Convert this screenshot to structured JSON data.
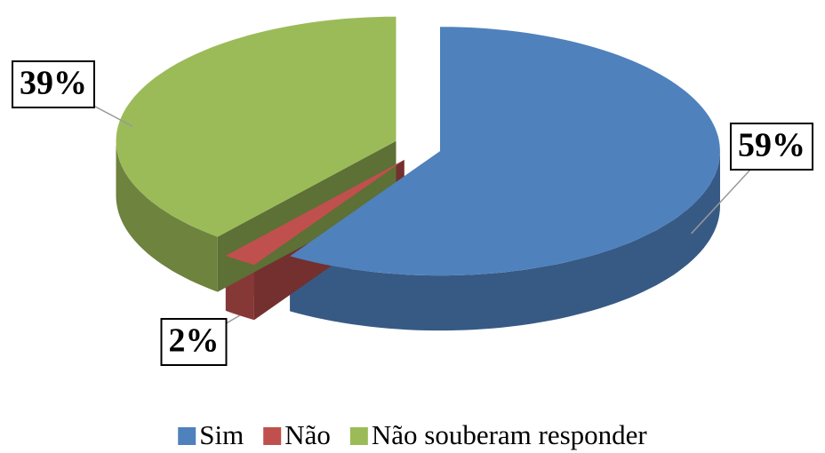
{
  "chart_data": {
    "type": "pie",
    "categories": [
      "Sim",
      "Não",
      "Não souberam responder"
    ],
    "values": [
      59,
      2,
      39
    ],
    "value_labels": [
      "59%",
      "2%",
      "39%"
    ],
    "colors": [
      "#4f81bd",
      "#c0504d",
      "#9bbb59"
    ],
    "legend": "bottom"
  }
}
